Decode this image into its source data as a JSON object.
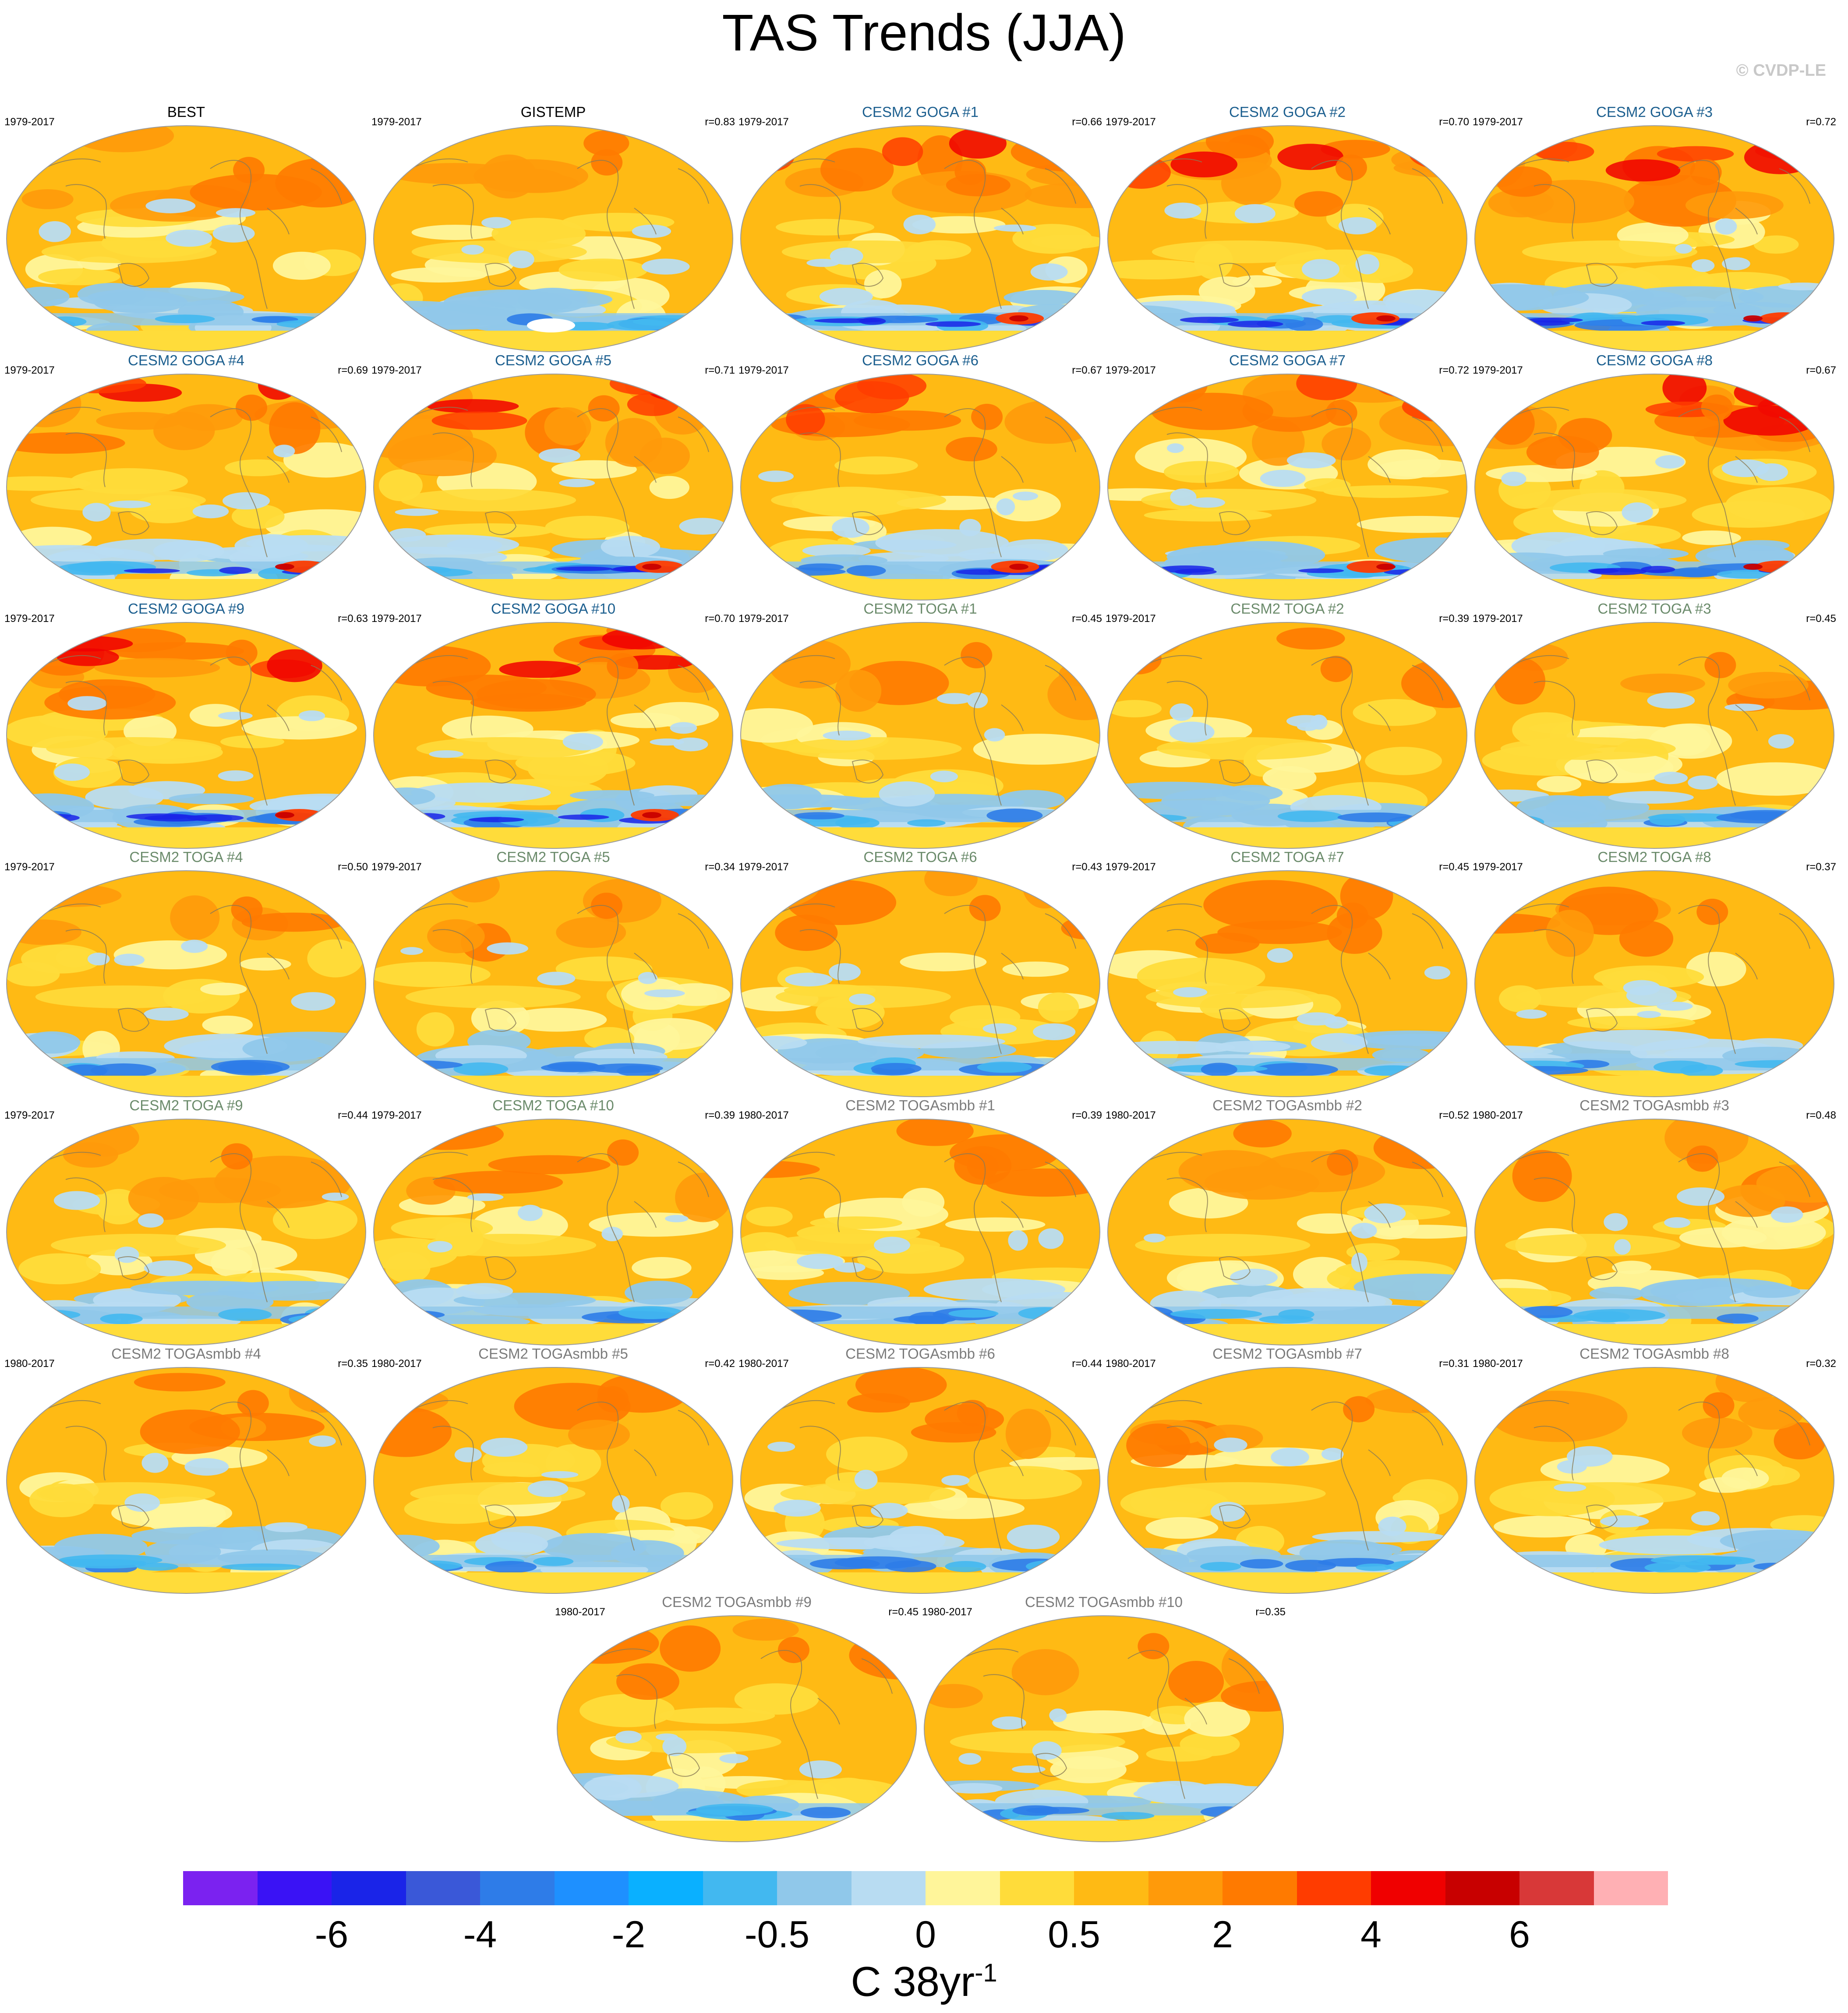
{
  "title": "TAS Trends (JJA)",
  "copyright": "© CVDP-LE",
  "panels": [
    {
      "title": "BEST",
      "years": "1979-2017",
      "r": "",
      "kind": "obs",
      "intensity": 1.0
    },
    {
      "title": "GISTEMP",
      "years": "1979-2017",
      "r": "r=0.83",
      "kind": "obs",
      "intensity": 1.0
    },
    {
      "title": "CESM2 GOGA #1",
      "years": "1979-2017",
      "r": "r=0.66",
      "kind": "goga",
      "intensity": 1.3
    },
    {
      "title": "CESM2 GOGA #2",
      "years": "1979-2017",
      "r": "r=0.70",
      "kind": "goga",
      "intensity": 1.4
    },
    {
      "title": "CESM2 GOGA #3",
      "years": "1979-2017",
      "r": "r=0.72",
      "kind": "goga",
      "intensity": 1.5
    },
    {
      "title": "CESM2 GOGA #4",
      "years": "1979-2017",
      "r": "r=0.69",
      "kind": "goga",
      "intensity": 1.4
    },
    {
      "title": "CESM2 GOGA #5",
      "years": "1979-2017",
      "r": "r=0.71",
      "kind": "goga",
      "intensity": 1.5
    },
    {
      "title": "CESM2 GOGA #6",
      "years": "1979-2017",
      "r": "r=0.67",
      "kind": "goga",
      "intensity": 1.4
    },
    {
      "title": "CESM2 GOGA #7",
      "years": "1979-2017",
      "r": "r=0.72",
      "kind": "goga",
      "intensity": 1.3
    },
    {
      "title": "CESM2 GOGA #8",
      "years": "1979-2017",
      "r": "r=0.67",
      "kind": "goga",
      "intensity": 1.5
    },
    {
      "title": "CESM2 GOGA #9",
      "years": "1979-2017",
      "r": "r=0.63",
      "kind": "goga",
      "intensity": 1.4
    },
    {
      "title": "CESM2 GOGA #10",
      "years": "1979-2017",
      "r": "r=0.70",
      "kind": "goga",
      "intensity": 1.4
    },
    {
      "title": "CESM2 TOGA #1",
      "years": "1979-2017",
      "r": "r=0.45",
      "kind": "toga",
      "intensity": 0.9
    },
    {
      "title": "CESM2 TOGA #2",
      "years": "1979-2017",
      "r": "r=0.39",
      "kind": "toga",
      "intensity": 0.9
    },
    {
      "title": "CESM2 TOGA #3",
      "years": "1979-2017",
      "r": "r=0.45",
      "kind": "toga",
      "intensity": 1.0
    },
    {
      "title": "CESM2 TOGA #4",
      "years": "1979-2017",
      "r": "r=0.50",
      "kind": "toga",
      "intensity": 0.9
    },
    {
      "title": "CESM2 TOGA #5",
      "years": "1979-2017",
      "r": "r=0.34",
      "kind": "toga",
      "intensity": 0.9
    },
    {
      "title": "CESM2 TOGA #6",
      "years": "1979-2017",
      "r": "r=0.43",
      "kind": "toga",
      "intensity": 1.0
    },
    {
      "title": "CESM2 TOGA #7",
      "years": "1979-2017",
      "r": "r=0.45",
      "kind": "toga",
      "intensity": 0.9
    },
    {
      "title": "CESM2 TOGA #8",
      "years": "1979-2017",
      "r": "r=0.37",
      "kind": "toga",
      "intensity": 0.8
    },
    {
      "title": "CESM2 TOGA #9",
      "years": "1979-2017",
      "r": "r=0.44",
      "kind": "toga",
      "intensity": 0.9
    },
    {
      "title": "CESM2 TOGA #10",
      "years": "1979-2017",
      "r": "r=0.39",
      "kind": "toga",
      "intensity": 0.9
    },
    {
      "title": "CESM2 TOGAsmbb #1",
      "years": "1980-2017",
      "r": "r=0.39",
      "kind": "smbb",
      "intensity": 0.8
    },
    {
      "title": "CESM2 TOGAsmbb #2",
      "years": "1980-2017",
      "r": "r=0.52",
      "kind": "smbb",
      "intensity": 0.8
    },
    {
      "title": "CESM2 TOGAsmbb #3",
      "years": "1980-2017",
      "r": "r=0.48",
      "kind": "smbb",
      "intensity": 0.9
    },
    {
      "title": "CESM2 TOGAsmbb #4",
      "years": "1980-2017",
      "r": "r=0.35",
      "kind": "smbb",
      "intensity": 0.8
    },
    {
      "title": "CESM2 TOGAsmbb #5",
      "years": "1980-2017",
      "r": "r=0.42",
      "kind": "smbb",
      "intensity": 0.8
    },
    {
      "title": "CESM2 TOGAsmbb #6",
      "years": "1980-2017",
      "r": "r=0.44",
      "kind": "smbb",
      "intensity": 0.8
    },
    {
      "title": "CESM2 TOGAsmbb #7",
      "years": "1980-2017",
      "r": "r=0.31",
      "kind": "smbb",
      "intensity": 0.9
    },
    {
      "title": "CESM2 TOGAsmbb #8",
      "years": "1980-2017",
      "r": "r=0.32",
      "kind": "smbb",
      "intensity": 0.8
    },
    {
      "title": "CESM2 TOGAsmbb #9",
      "years": "1980-2017",
      "r": "r=0.45",
      "kind": "smbb",
      "intensity": 0.8
    },
    {
      "title": "CESM2 TOGAsmbb #10",
      "years": "1980-2017",
      "r": "r=0.35",
      "kind": "smbb",
      "intensity": 0.8
    }
  ],
  "colorbar": {
    "colors": [
      "#7b22f0",
      "#3a12f5",
      "#1a24e8",
      "#3a58d8",
      "#2e7ce8",
      "#1e90ff",
      "#0ab0ff",
      "#42b8f0",
      "#90c8ea",
      "#b8dcf2",
      "#fff59a",
      "#ffdc3a",
      "#ffba14",
      "#ff9a0a",
      "#ff7a00",
      "#ff3c00",
      "#f00000",
      "#c80000",
      "#d83838",
      "#ffb0b4"
    ],
    "ticks": [
      "-6",
      "-4",
      "-2",
      "-0.5",
      "0",
      "0.5",
      "2",
      "4",
      "6"
    ],
    "units_main": "C 38yr",
    "units_sup": "-1"
  },
  "title_colors": {
    "obs": "#000000",
    "goga": "#1c5f8f",
    "toga": "#6b8b6b",
    "smbb": "#7b7b7b"
  }
}
